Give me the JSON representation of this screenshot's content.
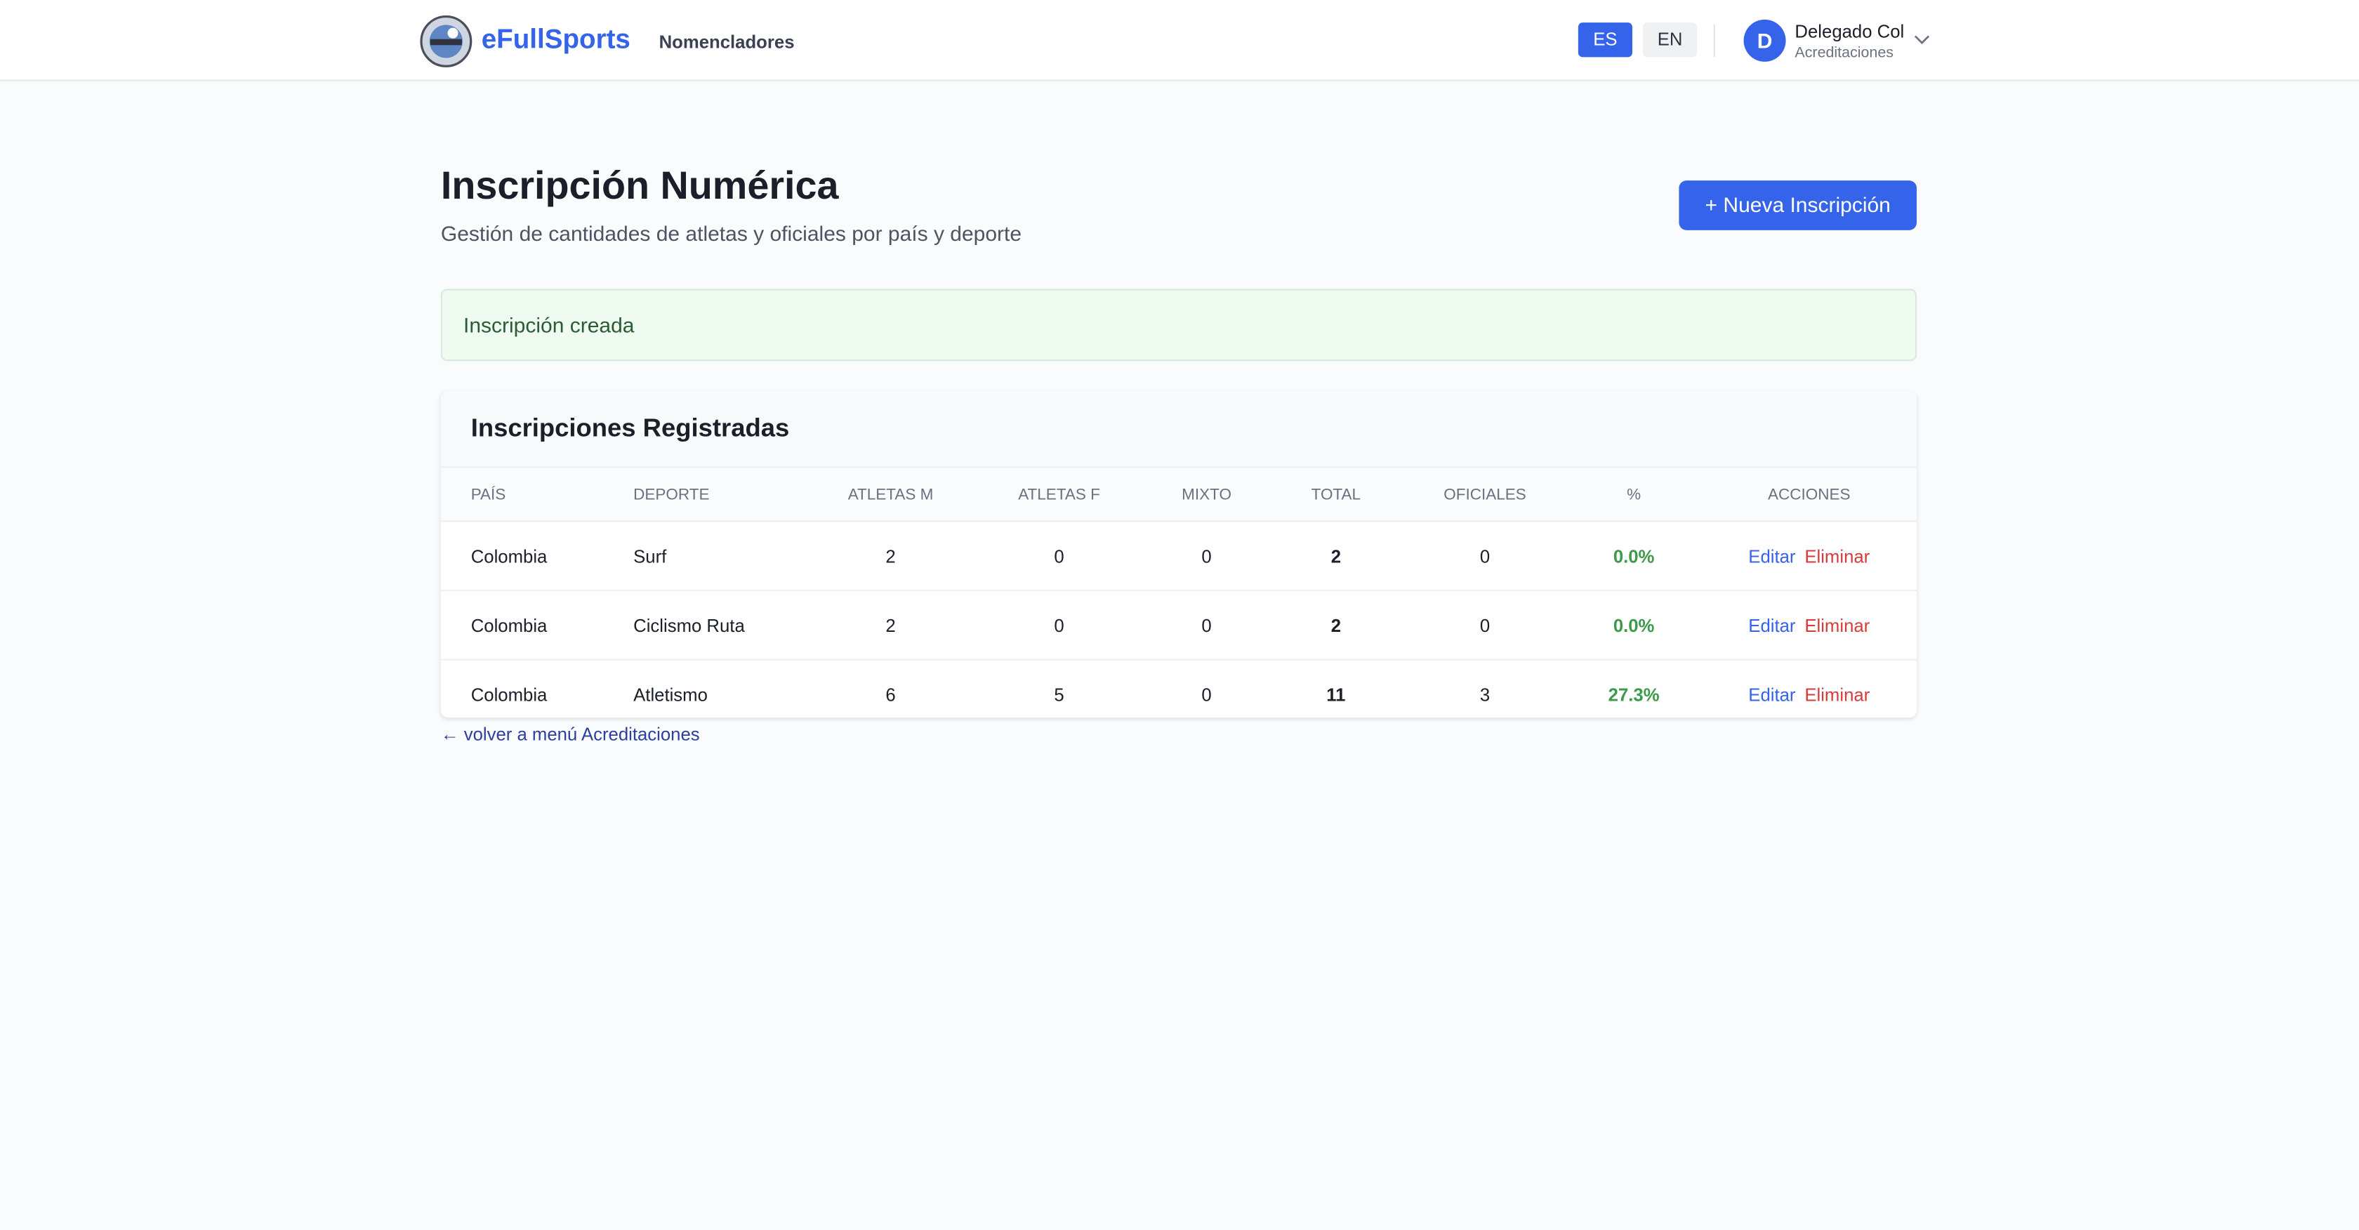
{
  "header": {
    "brand": "eFullSports",
    "nav": "Nomencladores",
    "languages": [
      "ES",
      "EN"
    ],
    "user": {
      "initial": "D",
      "name": "Delegado Col",
      "role": "Acreditaciones"
    }
  },
  "page": {
    "title": "Inscripción Numérica",
    "subtitle": "Gestión de cantidades de atletas y oficiales por país y deporte",
    "button": "+ Nueva Inscripción"
  },
  "alert": "Inscripción creada",
  "table": {
    "title": "Inscripciones Registradas",
    "columns": [
      "PAÍS",
      "DEPORTE",
      "ATLETAS M",
      "ATLETAS F",
      "MIXTO",
      "TOTAL",
      "OFICIALES",
      "%",
      "ACCIONES"
    ],
    "rows": [
      [
        "Colombia",
        "Surf",
        "2",
        "0",
        "0",
        "2",
        "0",
        "0.0%"
      ],
      [
        "Colombia",
        "Ciclismo Ruta",
        "2",
        "0",
        "0",
        "2",
        "0",
        "0.0%"
      ],
      [
        "Colombia",
        "Atletismo",
        "6",
        "5",
        "0",
        "11",
        "3",
        "27.3%"
      ]
    ],
    "actions": [
      "Editar",
      "Eliminar"
    ]
  },
  "back_link": "← volver a menú Acreditaciones"
}
